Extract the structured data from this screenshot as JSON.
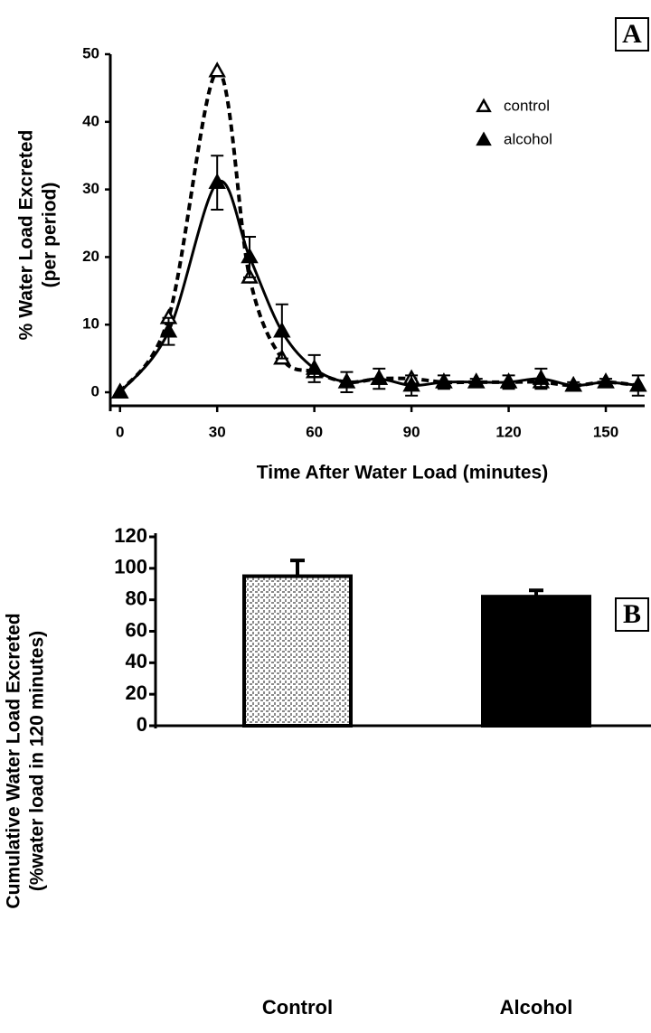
{
  "chart_data": [
    {
      "type": "line",
      "panel_label": "A",
      "xlabel": "Time After Water Load (minutes)",
      "ylabel": [
        "% Water Load Excreted",
        "(per period)"
      ],
      "x": [
        0,
        15,
        30,
        40,
        50,
        60,
        70,
        80,
        90,
        100,
        110,
        120,
        130,
        140,
        150,
        160
      ],
      "series": [
        {
          "name": "control",
          "color": "#000000",
          "marker": "open-triangle",
          "line": "dashed",
          "values": [
            0,
            11,
            47.5,
            17,
            5,
            3,
            1.5,
            2,
            2,
            1.5,
            1.5,
            1.5,
            1.5,
            1,
            1.5,
            1
          ]
        },
        {
          "name": "alcohol",
          "color": "#000000",
          "marker": "filled-triangle",
          "line": "solid",
          "values": [
            0,
            9,
            31,
            20,
            9,
            3.5,
            1.5,
            2,
            1,
            1.5,
            1.5,
            1.5,
            2,
            1,
            1.5,
            1
          ],
          "errors": [
            0,
            2,
            4,
            3,
            4,
            2,
            1.5,
            1.5,
            1.5,
            1,
            0.5,
            1,
            1.5,
            0.5,
            0.5,
            1.5
          ]
        }
      ],
      "xlim": [
        -3,
        162
      ],
      "xticks": [
        0,
        30,
        60,
        90,
        120,
        150
      ],
      "ylim": [
        -2,
        50
      ],
      "yticks": [
        0,
        10,
        20,
        30,
        40,
        50
      ],
      "legend": "upper right"
    },
    {
      "type": "bar",
      "panel_label": "B",
      "ylabel": [
        "Cumulative Water Load Excreted",
        "(%water load in 120 minutes)"
      ],
      "categories": [
        "Control",
        "Alcohol"
      ],
      "values": [
        95,
        82
      ],
      "errors": [
        10,
        4
      ],
      "colors": [
        "#8a8a8a",
        "#000000"
      ],
      "ylim": [
        0,
        120
      ],
      "yticks": [
        0,
        20,
        40,
        60,
        80,
        100,
        120
      ]
    }
  ]
}
